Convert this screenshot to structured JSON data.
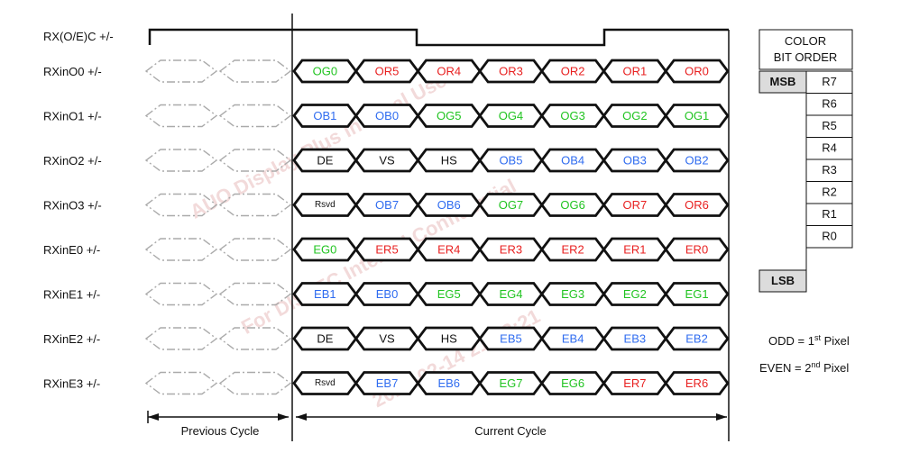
{
  "clock": {
    "label": "RX(O/E)C +/-"
  },
  "colors": {
    "black": "#111111",
    "red": "#e82020",
    "green": "#21c421",
    "blue": "#2f6cf0",
    "ghost": "#aaaaaa"
  },
  "rows": [
    {
      "label": "RXinO0 +/-",
      "cells": [
        {
          "t": "OG0",
          "c": "green"
        },
        {
          "t": "OR5",
          "c": "red"
        },
        {
          "t": "OR4",
          "c": "red"
        },
        {
          "t": "OR3",
          "c": "red"
        },
        {
          "t": "OR2",
          "c": "red"
        },
        {
          "t": "OR1",
          "c": "red"
        },
        {
          "t": "OR0",
          "c": "red"
        }
      ]
    },
    {
      "label": "RXinO1 +/-",
      "cells": [
        {
          "t": "OB1",
          "c": "blue"
        },
        {
          "t": "OB0",
          "c": "blue"
        },
        {
          "t": "OG5",
          "c": "green"
        },
        {
          "t": "OG4",
          "c": "green"
        },
        {
          "t": "OG3",
          "c": "green"
        },
        {
          "t": "OG2",
          "c": "green"
        },
        {
          "t": "OG1",
          "c": "green"
        }
      ]
    },
    {
      "label": "RXinO2 +/-",
      "cells": [
        {
          "t": "DE",
          "c": "black"
        },
        {
          "t": "VS",
          "c": "black"
        },
        {
          "t": "HS",
          "c": "black"
        },
        {
          "t": "OB5",
          "c": "blue"
        },
        {
          "t": "OB4",
          "c": "blue"
        },
        {
          "t": "OB3",
          "c": "blue"
        },
        {
          "t": "OB2",
          "c": "blue"
        }
      ]
    },
    {
      "label": "RXinO3 +/-",
      "cells": [
        {
          "t": "Rsvd",
          "c": "black"
        },
        {
          "t": "OB7",
          "c": "blue"
        },
        {
          "t": "OB6",
          "c": "blue"
        },
        {
          "t": "OG7",
          "c": "green"
        },
        {
          "t": "OG6",
          "c": "green"
        },
        {
          "t": "OR7",
          "c": "red"
        },
        {
          "t": "OR6",
          "c": "red"
        }
      ]
    },
    {
      "label": "RXinE0 +/-",
      "cells": [
        {
          "t": "EG0",
          "c": "green"
        },
        {
          "t": "ER5",
          "c": "red"
        },
        {
          "t": "ER4",
          "c": "red"
        },
        {
          "t": "ER3",
          "c": "red"
        },
        {
          "t": "ER2",
          "c": "red"
        },
        {
          "t": "ER1",
          "c": "red"
        },
        {
          "t": "ER0",
          "c": "red"
        }
      ]
    },
    {
      "label": "RXinE1 +/-",
      "cells": [
        {
          "t": "EB1",
          "c": "blue"
        },
        {
          "t": "EB0",
          "c": "blue"
        },
        {
          "t": "EG5",
          "c": "green"
        },
        {
          "t": "EG4",
          "c": "green"
        },
        {
          "t": "EG3",
          "c": "green"
        },
        {
          "t": "EG2",
          "c": "green"
        },
        {
          "t": "EG1",
          "c": "green"
        }
      ]
    },
    {
      "label": "RXinE2 +/-",
      "cells": [
        {
          "t": "DE",
          "c": "black"
        },
        {
          "t": "VS",
          "c": "black"
        },
        {
          "t": "HS",
          "c": "black"
        },
        {
          "t": "EB5",
          "c": "blue"
        },
        {
          "t": "EB4",
          "c": "blue"
        },
        {
          "t": "EB3",
          "c": "blue"
        },
        {
          "t": "EB2",
          "c": "blue"
        }
      ]
    },
    {
      "label": "RXinE3 +/-",
      "cells": [
        {
          "t": "Rsvd",
          "c": "black"
        },
        {
          "t": "EB7",
          "c": "blue"
        },
        {
          "t": "EB6",
          "c": "blue"
        },
        {
          "t": "EG7",
          "c": "green"
        },
        {
          "t": "EG6",
          "c": "green"
        },
        {
          "t": "ER7",
          "c": "red"
        },
        {
          "t": "ER6",
          "c": "red"
        }
      ]
    }
  ],
  "cycles": {
    "previous": "Previous Cycle",
    "current": "Current Cycle"
  },
  "bit_order": {
    "header_line1": "COLOR",
    "header_line2": "BIT ORDER",
    "msb": "MSB",
    "lsb": "LSB",
    "bits": [
      "R7",
      "R6",
      "R5",
      "R4",
      "R3",
      "R2",
      "R1",
      "R0"
    ]
  },
  "legend": {
    "odd_prefix": "ODD = 1",
    "odd_sup": "st",
    "odd_suffix": " Pixel",
    "even_prefix": "EVEN = 2",
    "even_sup": "nd",
    "even_suffix": " Pixel"
  },
  "watermark": {
    "lines": [
      "AUO Display Plus Internal Use",
      "For DISTEC Internal Confidential",
      "2024-02-14 21:43:21"
    ]
  }
}
